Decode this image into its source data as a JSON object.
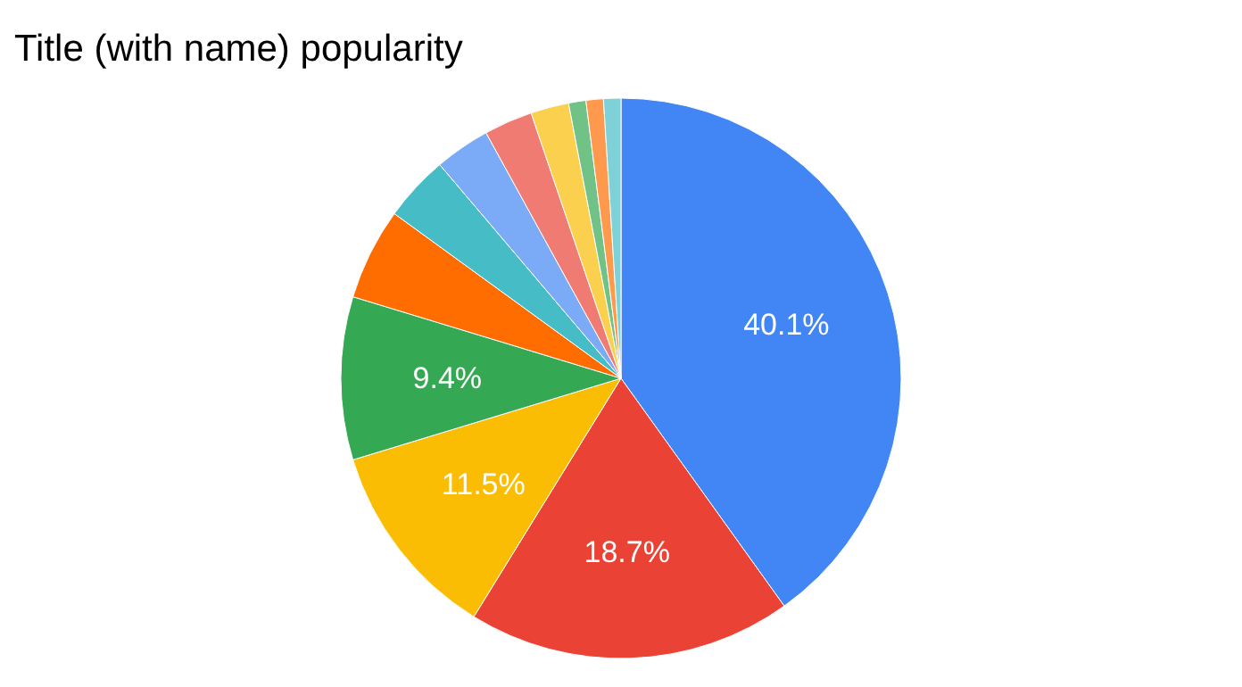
{
  "chart_data": {
    "type": "pie",
    "title": "Title (with name) popularity",
    "categories": [
      null,
      null,
      null,
      null,
      null,
      null,
      null,
      null,
      null,
      null,
      null,
      null
    ],
    "values": [
      40.1,
      18.7,
      11.5,
      9.4,
      5.3,
      3.8,
      3.2,
      2.8,
      2.2,
      1,
      1,
      1
    ],
    "colors": [
      "#4285f4",
      "#ea4335",
      "#fbbc04",
      "#34a853",
      "#ff6d01",
      "#46bdc6",
      "#7baaf7",
      "#f07b72",
      "#fcd04f",
      "#71c287",
      "#ff994d",
      "#7ed1d7"
    ],
    "value_labels": [
      "40.1%",
      "18.7%",
      "11.5%",
      "9.4%",
      null,
      null,
      null,
      null,
      null,
      null,
      null,
      null
    ],
    "legend": false
  }
}
